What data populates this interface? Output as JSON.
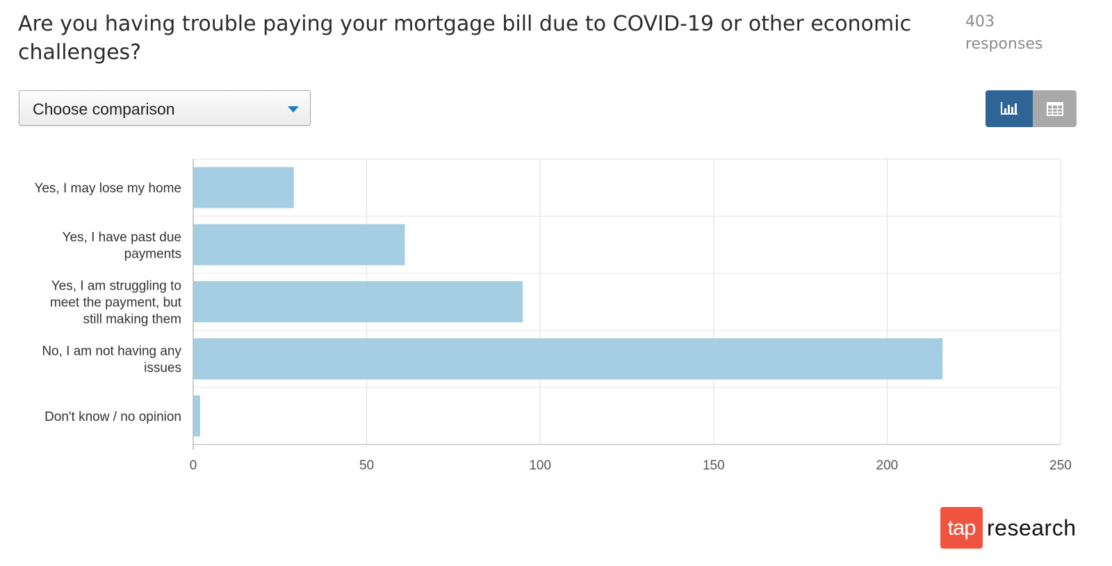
{
  "question": {
    "text": "Are you having trouble paying your mortgage bill due to COVID-19 or other economic challenges?"
  },
  "responses": {
    "count": "403",
    "label": "responses"
  },
  "comparison": {
    "label": "Choose comparison",
    "icon": "chevron-down-icon"
  },
  "view_toggle": {
    "chart_icon": "bar-chart-icon",
    "table_icon": "table-grid-icon",
    "active": "chart",
    "active_color": "#2e6496",
    "inactive_color": "#a9a9a9"
  },
  "chart_data": {
    "type": "bar",
    "orientation": "horizontal",
    "categories": [
      "Yes, I may lose my home",
      "Yes, I have past due payments",
      "Yes, I am struggling to meet the payment, but still making them",
      "No, I am not having any issues",
      "Don't know / no opinion"
    ],
    "category_lines": [
      [
        "Yes, I may lose my home"
      ],
      [
        "Yes, I have past due",
        "payments"
      ],
      [
        "Yes, I am struggling to",
        "meet the payment, but",
        "still making them"
      ],
      [
        "No, I am not having any",
        "issues"
      ],
      [
        "Don't know / no opinion"
      ]
    ],
    "values": [
      29,
      61,
      95,
      216,
      2
    ],
    "xlim": [
      0,
      250
    ],
    "xticks": [
      0,
      50,
      100,
      150,
      200,
      250
    ],
    "title": "",
    "xlabel": "",
    "ylabel": "",
    "grid": true,
    "bar_color": "#a6cee2"
  },
  "branding": {
    "logo_mark": "tap",
    "logo_word": "research",
    "logo_color": "#f0533f"
  }
}
